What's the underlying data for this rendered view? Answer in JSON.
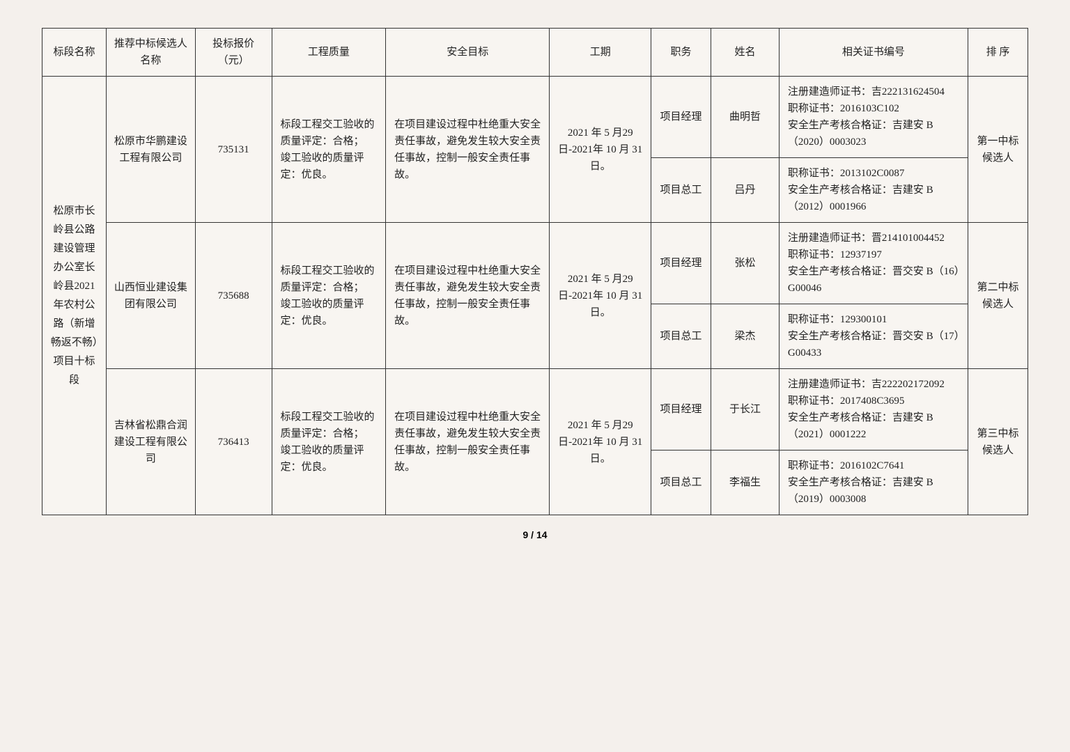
{
  "headers": {
    "section": "标段名称",
    "bidder": "推荐中标候选人名称",
    "price": "投标报价（元）",
    "quality": "工程质量",
    "safety": "安全目标",
    "period": "工期",
    "duty": "职务",
    "name": "姓名",
    "cert": "相关证书编号",
    "rank": "排 序"
  },
  "section_name": "松原市长岭县公路建设管理办公室长岭县2021年农村公路（新增畅返不畅）项目十标段",
  "candidates": [
    {
      "bidder": "松原市华鹏建设工程有限公司",
      "price": "735131",
      "quality": "标段工程交工验收的质量评定：合格；\n竣工验收的质量评定：优良。",
      "safety": "在项目建设过程中杜绝重大安全责任事故，避免发生较大安全责任事故，控制一般安全责任事故。",
      "period": "2021 年 5 月29 日-2021年 10 月 31日。",
      "rank": "第一中标候选人",
      "people": [
        {
          "duty": "项目经理",
          "name": "曲明哲",
          "cert": "注册建造师证书：吉222131624504\n职称证书：2016103C102\n安全生产考核合格证：吉建安 B（2020）0003023"
        },
        {
          "duty": "项目总工",
          "name": "吕丹",
          "cert": "职称证书：2013102C0087\n安全生产考核合格证：吉建安 B（2012）0001966"
        }
      ]
    },
    {
      "bidder": "山西恒业建设集团有限公司",
      "price": "735688",
      "quality": "标段工程交工验收的质量评定：合格；\n竣工验收的质量评定：优良。",
      "safety": "在项目建设过程中杜绝重大安全责任事故，避免发生较大安全责任事故，控制一般安全责任事故。",
      "period": "2021 年 5 月29 日-2021年 10 月 31日。",
      "rank": "第二中标候选人",
      "people": [
        {
          "duty": "项目经理",
          "name": "张松",
          "cert": "注册建造师证书：晋214101004452\n职称证书：12937197\n安全生产考核合格证：晋交安 B（16）G00046"
        },
        {
          "duty": "项目总工",
          "name": "梁杰",
          "cert": "职称证书：129300101\n安全生产考核合格证：晋交安 B（17）G00433"
        }
      ]
    },
    {
      "bidder": "吉林省松鼎合润建设工程有限公司",
      "price": "736413",
      "quality": "标段工程交工验收的质量评定：合格；\n竣工验收的质量评定：优良。",
      "safety": "在项目建设过程中杜绝重大安全责任事故，避免发生较大安全责任事故，控制一般安全责任事故。",
      "period": "2021 年 5 月29 日-2021年 10 月 31日。",
      "rank": "第三中标候选人",
      "people": [
        {
          "duty": "项目经理",
          "name": "于长江",
          "cert": "注册建造师证书：吉222202172092\n职称证书：2017408C3695\n安全生产考核合格证：吉建安 B（2021）0001222"
        },
        {
          "duty": "项目总工",
          "name": "李福生",
          "cert": "职称证书：2016102C7641\n安全生产考核合格证：吉建安 B（2019）0003008"
        }
      ]
    }
  ],
  "page": "9 / 14"
}
